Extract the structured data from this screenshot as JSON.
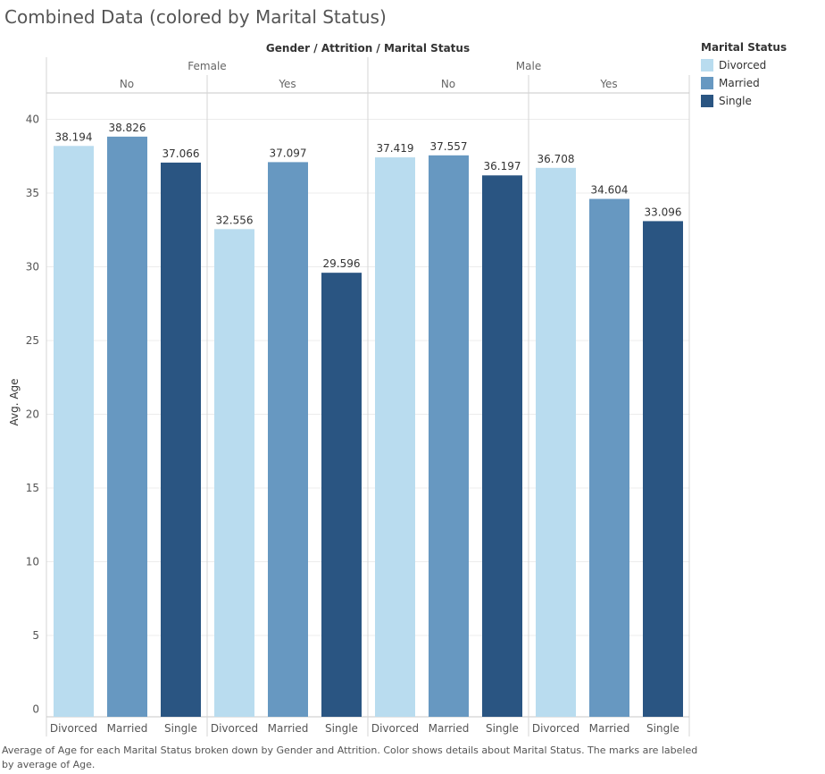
{
  "title": "Combined Data (colored by Marital Status)",
  "caption": "Average of Age for each Marital Status broken down by Gender and Attrition.  Color shows details about Marital Status.  The marks are labeled by average of Age.",
  "legend": {
    "title": "Marital Status",
    "items": [
      {
        "label": "Divorced",
        "color": "#b9dcef"
      },
      {
        "label": "Married",
        "color": "#6798c1"
      },
      {
        "label": "Single",
        "color": "#2a5582"
      }
    ]
  },
  "chart_data": {
    "type": "bar",
    "header_title": "Gender / Attrition / Marital Status",
    "ylabel": "Avg. Age",
    "ylim": [
      0,
      40
    ],
    "yticks": [
      0,
      5,
      10,
      15,
      20,
      25,
      30,
      35,
      40
    ],
    "groups": [
      {
        "gender": "Female",
        "attrition": "No",
        "bars": [
          {
            "status": "Divorced",
            "value": 38.194
          },
          {
            "status": "Married",
            "value": 38.826
          },
          {
            "status": "Single",
            "value": 37.066
          }
        ]
      },
      {
        "gender": "Female",
        "attrition": "Yes",
        "bars": [
          {
            "status": "Divorced",
            "value": 32.556
          },
          {
            "status": "Married",
            "value": 37.097
          },
          {
            "status": "Single",
            "value": 29.596
          }
        ]
      },
      {
        "gender": "Male",
        "attrition": "No",
        "bars": [
          {
            "status": "Divorced",
            "value": 37.419
          },
          {
            "status": "Married",
            "value": 37.557
          },
          {
            "status": "Single",
            "value": 36.197
          }
        ]
      },
      {
        "gender": "Male",
        "attrition": "Yes",
        "bars": [
          {
            "status": "Divorced",
            "value": 36.708
          },
          {
            "status": "Married",
            "value": 34.604
          },
          {
            "status": "Single",
            "value": 33.096
          }
        ]
      }
    ],
    "grid": true,
    "legend_position": "top-right"
  }
}
